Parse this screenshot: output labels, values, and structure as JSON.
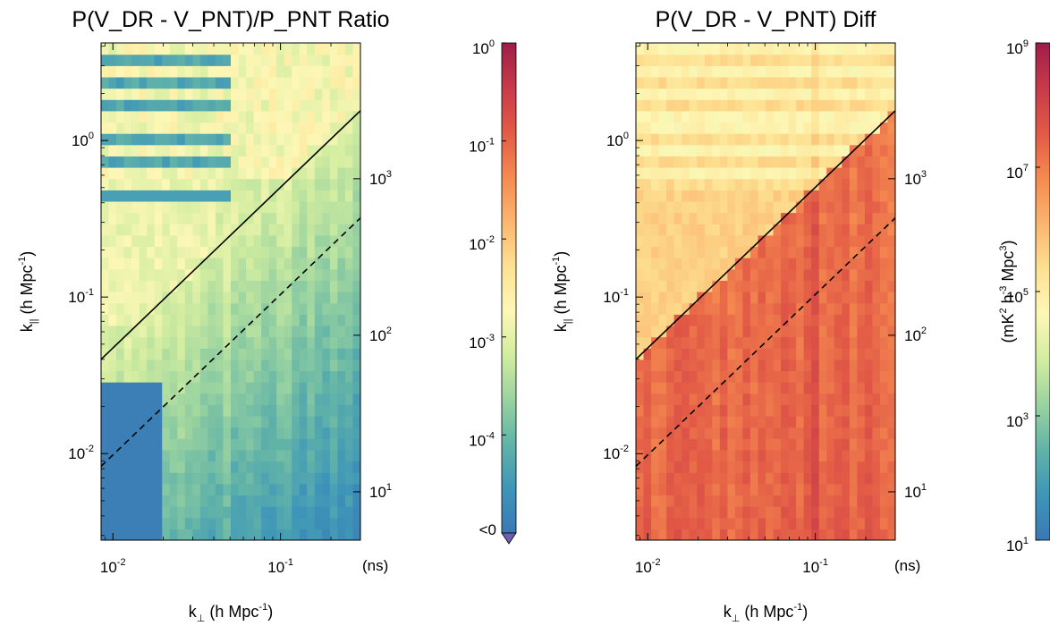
{
  "chart_data": [
    {
      "type": "heatmap",
      "title": "P(V_DR - V_PNT)/P_PNT Ratio",
      "xlabel": {
        "main": "k",
        "sub": "⊥",
        "unit": " (h Mpc",
        "exp": "-1",
        "close": ")"
      },
      "ylabel": {
        "main": "k",
        "sub": "||",
        "unit": " (h Mpc",
        "exp": "-1",
        "close": ")"
      },
      "x_scale": "log",
      "y_scale": "log",
      "xlim": [
        0.0085,
        0.3
      ],
      "ylim": [
        0.0028,
        4.2
      ],
      "x_ticks": [
        {
          "base": "10",
          "exp": "-2",
          "value": 0.01
        },
        {
          "base": "10",
          "exp": "-1",
          "value": 0.1
        }
      ],
      "y_ticks": [
        {
          "base": "10",
          "exp": "-2",
          "value": 0.01
        },
        {
          "base": "10",
          "exp": "-1",
          "value": 0.1
        },
        {
          "base": "10",
          "exp": "0",
          "value": 1
        }
      ],
      "right_axis": {
        "unit_label": "(ns)",
        "ticks": [
          {
            "base": "10",
            "exp": "1",
            "value": 0.0057
          },
          {
            "base": "10",
            "exp": "2",
            "value": 0.057
          },
          {
            "base": "10",
            "exp": "3",
            "value": 0.57
          }
        ]
      },
      "lines": [
        {
          "style": "solid",
          "points": [
            [
              0.0085,
              0.04
            ],
            [
              0.3,
              1.55
            ]
          ]
        },
        {
          "style": "dashed",
          "points": [
            [
              0.0085,
              0.0083
            ],
            [
              0.3,
              0.32
            ]
          ]
        }
      ],
      "colorbar": {
        "scale": "log",
        "range": [
          1e-05,
          1
        ],
        "ticks": [
          {
            "base": "10",
            "exp": "0",
            "value": 1
          },
          {
            "base": "10",
            "exp": "-1",
            "value": 0.1
          },
          {
            "base": "10",
            "exp": "-2",
            "value": 0.01
          },
          {
            "base": "10",
            "exp": "-3",
            "value": 0.001
          },
          {
            "base": "10",
            "exp": "-4",
            "value": 0.0001
          }
        ],
        "under_label": "<0"
      }
    },
    {
      "type": "heatmap",
      "title": "P(V_DR - V_PNT) Diff",
      "xlabel": {
        "main": "k",
        "sub": "⊥",
        "unit": " (h Mpc",
        "exp": "-1",
        "close": ")"
      },
      "ylabel": {
        "main": "k",
        "sub": "||",
        "unit": " (h Mpc",
        "exp": "-1",
        "close": ")"
      },
      "x_scale": "log",
      "y_scale": "log",
      "xlim": [
        0.0085,
        0.3
      ],
      "ylim": [
        0.0028,
        4.2
      ],
      "x_ticks": [
        {
          "base": "10",
          "exp": "-2",
          "value": 0.01
        },
        {
          "base": "10",
          "exp": "-1",
          "value": 0.1
        }
      ],
      "y_ticks": [
        {
          "base": "10",
          "exp": "-2",
          "value": 0.01
        },
        {
          "base": "10",
          "exp": "-1",
          "value": 0.1
        },
        {
          "base": "10",
          "exp": "0",
          "value": 1
        }
      ],
      "right_axis": {
        "unit_label": "(ns)",
        "ticks": [
          {
            "base": "10",
            "exp": "1",
            "value": 0.0057
          },
          {
            "base": "10",
            "exp": "2",
            "value": 0.057
          },
          {
            "base": "10",
            "exp": "3",
            "value": 0.57
          }
        ]
      },
      "lines": [
        {
          "style": "solid",
          "points": [
            [
              0.0085,
              0.04
            ],
            [
              0.3,
              1.55
            ]
          ]
        },
        {
          "style": "dashed",
          "points": [
            [
              0.0085,
              0.0083
            ],
            [
              0.3,
              0.32
            ]
          ]
        }
      ],
      "colorbar": {
        "scale": "log",
        "range": [
          10,
          1000000000
        ],
        "ticks": [
          {
            "base": "10",
            "exp": "9",
            "value": 1000000000
          },
          {
            "base": "10",
            "exp": "7",
            "value": 10000000
          },
          {
            "base": "10",
            "exp": "5",
            "value": 100000
          },
          {
            "base": "10",
            "exp": "3",
            "value": 1000
          },
          {
            "base": "10",
            "exp": "1",
            "value": 10
          }
        ],
        "label": {
          "p1": "(mK",
          "e1": "2",
          "p2": " h",
          "e2": "-3",
          "p3": " Mpc",
          "e3": "3",
          "p4": ")"
        }
      }
    }
  ],
  "colormap": [
    "#3a78b6",
    "#3e96b8",
    "#61b3a8",
    "#9ad3a0",
    "#d2eda0",
    "#fdf7b6",
    "#fde192",
    "#fbb56e",
    "#f58a50",
    "#e25a46",
    "#c83a4a",
    "#9e1d47"
  ]
}
